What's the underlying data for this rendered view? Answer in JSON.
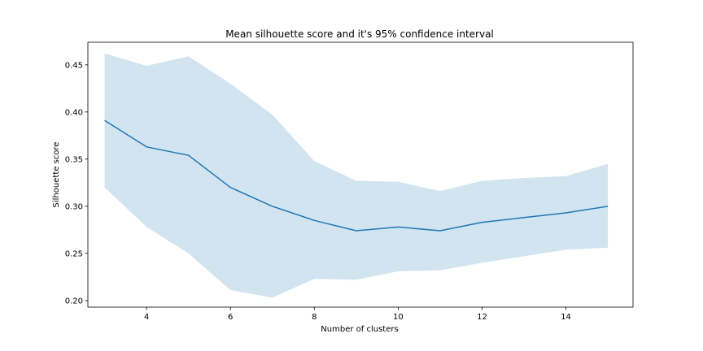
{
  "chart_data": {
    "type": "line",
    "title": "Mean silhouette score and it's 95% confidence interval",
    "xlabel": "Number of clusters",
    "ylabel": "Silhouette score",
    "xlim": [
      2.6,
      15.6
    ],
    "ylim": [
      0.193,
      0.474
    ],
    "xticks": [
      4,
      6,
      8,
      10,
      12,
      14
    ],
    "yticks": [
      0.2,
      0.25,
      0.3,
      0.35,
      0.4,
      0.45
    ],
    "ytick_labels": [
      "0.20",
      "0.25",
      "0.30",
      "0.35",
      "0.40",
      "0.45"
    ],
    "grid": false,
    "series": [
      {
        "x": [
          3,
          4,
          5,
          6,
          7,
          8,
          9,
          10,
          11,
          12,
          13,
          14,
          15
        ],
        "values": [
          0.391,
          0.363,
          0.354,
          0.32,
          0.3,
          0.285,
          0.274,
          0.278,
          0.274,
          0.283,
          0.288,
          0.293,
          0.3
        ],
        "ci_lower": [
          0.32,
          0.278,
          0.25,
          0.211,
          0.203,
          0.223,
          0.222,
          0.231,
          0.232,
          0.24,
          0.247,
          0.254,
          0.256
        ],
        "ci_upper": [
          0.462,
          0.449,
          0.459,
          0.43,
          0.397,
          0.348,
          0.327,
          0.326,
          0.316,
          0.327,
          0.33,
          0.332,
          0.345
        ],
        "color": "#1f77b4",
        "band_color": "#1f77b4"
      }
    ]
  }
}
